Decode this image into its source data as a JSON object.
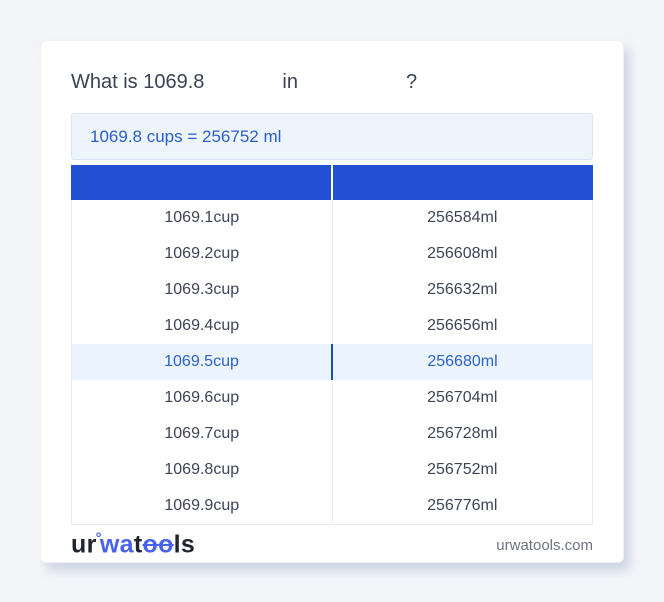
{
  "question": {
    "prefix": "What is ",
    "value": "1069.8",
    "connector": "in",
    "qmark": "?"
  },
  "result": {
    "text": "1069.8 cups = 256752 ml"
  },
  "table": {
    "header": {
      "col1": "",
      "col2": ""
    },
    "rows": [
      {
        "cup": "1069.1cup",
        "ml": "256584ml"
      },
      {
        "cup": "1069.2cup",
        "ml": "256608ml"
      },
      {
        "cup": "1069.3cup",
        "ml": "256632ml"
      },
      {
        "cup": "1069.4cup",
        "ml": "256656ml"
      },
      {
        "cup": "1069.5cup",
        "ml": "256680ml"
      },
      {
        "cup": "1069.6cup",
        "ml": "256704ml"
      },
      {
        "cup": "1069.7cup",
        "ml": "256728ml"
      },
      {
        "cup": "1069.8cup",
        "ml": "256752ml"
      },
      {
        "cup": "1069.9cup",
        "ml": "256776ml"
      }
    ],
    "highlighted_row_index": 4
  },
  "footer": {
    "logo": {
      "seg1": "ur",
      "ring": "°",
      "seg2": "wa",
      "seg3": "t",
      "seg4": "oo",
      "seg5": "ls"
    },
    "website": "urwatools.com"
  },
  "colors": {
    "page_background": "#f3f5f9",
    "table_header_blue": "#2151d2",
    "result_background": "#edf4fc",
    "result_text_blue": "#2b5fc5",
    "highlight_background": "#eaf3fe",
    "highlight_text_blue": "#2e62c6",
    "highlight_divider_blue": "#1e4fa8",
    "logo_blue": "#4a63ee",
    "body_text": "#3c4554",
    "muted_text": "#6d7480"
  }
}
